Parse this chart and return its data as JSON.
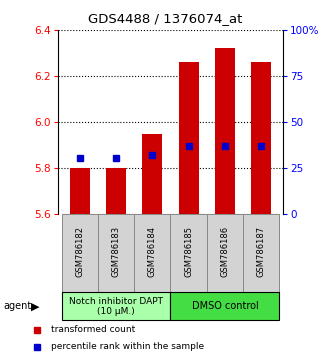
{
  "title": "GDS4488 / 1376074_at",
  "samples": [
    "GSM786182",
    "GSM786183",
    "GSM786184",
    "GSM786185",
    "GSM786186",
    "GSM786187"
  ],
  "bar_bottom": 5.6,
  "bar_top": [
    5.8,
    5.8,
    5.95,
    6.26,
    6.32,
    6.26
  ],
  "percentile_y": [
    5.845,
    5.845,
    5.855,
    5.895,
    5.895,
    5.895
  ],
  "ylim": [
    5.6,
    6.4
  ],
  "yticks_left": [
    5.6,
    5.8,
    6.0,
    6.2,
    6.4
  ],
  "yticks_right_pct": [
    0,
    25,
    50,
    75,
    100
  ],
  "bar_color": "#cc0000",
  "percentile_color": "#0000cc",
  "group1_label": "Notch inhibitor DAPT\n(10 μM.)",
  "group2_label": "DMSO control",
  "group1_color": "#aaffaa",
  "group2_color": "#44dd44",
  "legend_red": "transformed count",
  "legend_blue": "percentile rank within the sample",
  "agent_label": "agent",
  "bg_color": "#ffffff",
  "sample_box_color": "#d3d3d3",
  "sample_box_edge": "#888888"
}
